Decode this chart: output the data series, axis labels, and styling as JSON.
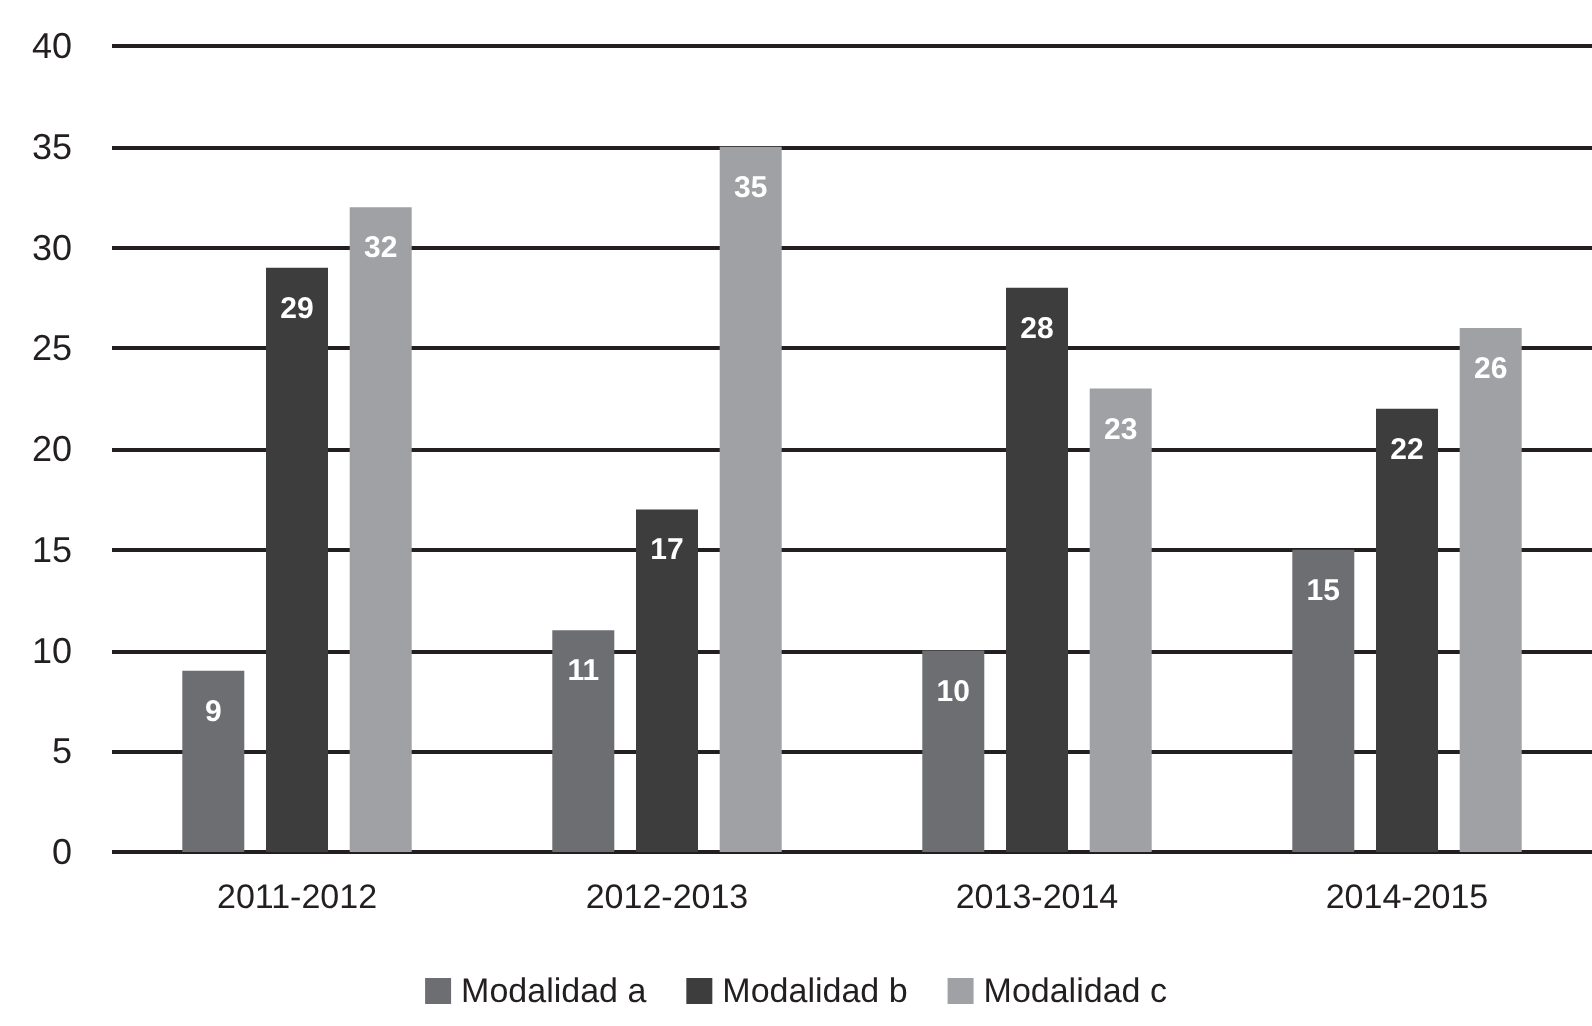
{
  "chart_data": {
    "type": "bar",
    "categories": [
      "2011-2012",
      "2012-2013",
      "2013-2014",
      "2014-2015"
    ],
    "series": [
      {
        "name": "Modalidad a",
        "color": "#6d6e71",
        "values": [
          9,
          11,
          10,
          15
        ]
      },
      {
        "name": "Modalidad b",
        "color": "#3d3d3d",
        "values": [
          29,
          17,
          28,
          22
        ]
      },
      {
        "name": "Modalidad c",
        "color": "#a0a1a4",
        "values": [
          32,
          35,
          23,
          26
        ]
      }
    ],
    "ylim": [
      0,
      40
    ],
    "yticks": [
      0,
      5,
      10,
      15,
      20,
      25,
      30,
      35,
      40
    ],
    "grid": "y",
    "legend": "bottom",
    "data_labels": true
  }
}
